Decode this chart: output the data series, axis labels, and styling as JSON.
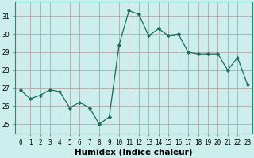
{
  "x": [
    0,
    1,
    2,
    3,
    4,
    5,
    6,
    7,
    8,
    9,
    10,
    11,
    12,
    13,
    14,
    15,
    16,
    17,
    18,
    19,
    20,
    21,
    22,
    23
  ],
  "y": [
    26.9,
    26.4,
    26.6,
    26.9,
    26.8,
    25.9,
    26.2,
    25.9,
    25.0,
    25.4,
    29.4,
    31.3,
    31.1,
    29.9,
    30.3,
    29.9,
    30.0,
    29.0,
    28.9,
    28.9,
    28.9,
    28.0,
    28.7,
    27.2
  ],
  "line_color": "#1a6b5a",
  "marker": "D",
  "marker_size": 2.2,
  "bg_color": "#cceeed",
  "grid_color": "#b0a8a8",
  "xlabel": "Humidex (Indice chaleur)",
  "xlim": [
    -0.5,
    23.5
  ],
  "ylim": [
    24.5,
    31.8
  ],
  "yticks": [
    25,
    26,
    27,
    28,
    29,
    30,
    31
  ],
  "xticks": [
    0,
    1,
    2,
    3,
    4,
    5,
    6,
    7,
    8,
    9,
    10,
    11,
    12,
    13,
    14,
    15,
    16,
    17,
    18,
    19,
    20,
    21,
    22,
    23
  ],
  "tick_fontsize": 5.5,
  "label_fontsize": 7.5,
  "spine_color": "#2a8a7a"
}
